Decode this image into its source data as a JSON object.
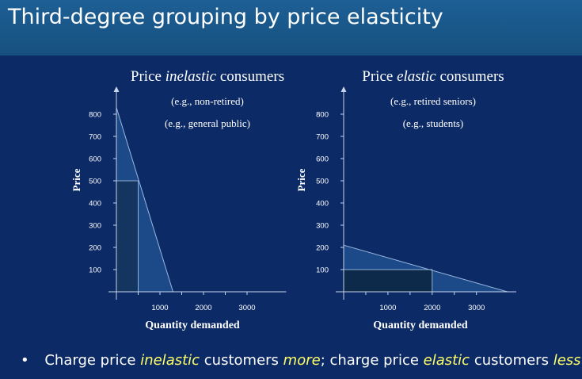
{
  "slide": {
    "title": "Third-degree grouping by price elasticity"
  },
  "chart_data": [
    {
      "type": "line",
      "title_prefix": "Price ",
      "title_emph": "inelastic",
      "title_suffix": " consumers",
      "subtitle_1": "(e.g., non-retired)",
      "subtitle_2": "(e.g., general public)",
      "ylabel": "Price",
      "xlabel": "Quantity demanded",
      "y_ticks": [
        "800",
        "700",
        "600",
        "500",
        "400",
        "300",
        "200",
        "100"
      ],
      "x_ticks": [
        "1000",
        "2000",
        "3000"
      ],
      "demand_line": [
        {
          "x": 0,
          "y": 830
        },
        {
          "x": 1300,
          "y": 0
        }
      ],
      "price": 500,
      "quantity": 500
    },
    {
      "type": "line",
      "title_prefix": "Price ",
      "title_emph": "elastic",
      "title_suffix": " consumers",
      "subtitle_1": "(e.g., retired seniors)",
      "subtitle_2": "(e.g., students)",
      "ylabel": "Price",
      "xlabel": "Quantity demanded",
      "y_ticks": [
        "800",
        "700",
        "600",
        "500",
        "400",
        "300",
        "200",
        "100"
      ],
      "x_ticks": [
        "1000",
        "2000",
        "3000"
      ],
      "demand_line": [
        {
          "x": 0,
          "y": 210
        },
        {
          "x": 3700,
          "y": 0
        }
      ],
      "price": 100,
      "quantity": 2000
    }
  ],
  "bullet": {
    "marker": "•",
    "p1": "Charge price ",
    "h1": "inelastic",
    "p2": " customers ",
    "h2": "more",
    "p3": "; charge price ",
    "h3": "elastic",
    "p4": " customers ",
    "h4": "less"
  }
}
